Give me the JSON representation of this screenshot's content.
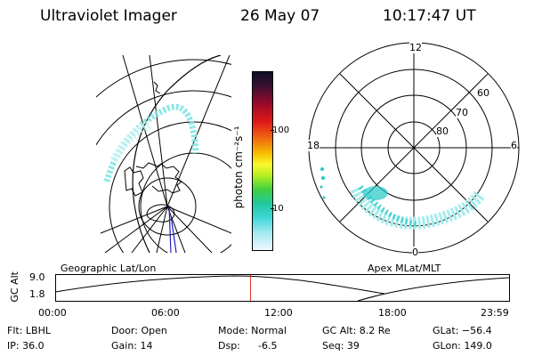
{
  "header": {
    "instrument": "Ultraviolet Imager",
    "date": "26 May 07",
    "time": "10:17:47 UT"
  },
  "colorbar": {
    "label": "photon cm⁻²s⁻¹",
    "ticks": [
      "100",
      "10"
    ]
  },
  "panels": {
    "left_label": "Geographic Lat/Lon",
    "right_label": "Apex MLat/MLT"
  },
  "polar_plot": {
    "mlt_labels": {
      "top": "12",
      "bottom": "0",
      "left": "18",
      "right": "6"
    },
    "lat_labels": [
      "60",
      "70",
      "80"
    ]
  },
  "altitude_plot": {
    "ylabel": "GC Alt",
    "y_ticks": [
      "9.0",
      "1.8"
    ],
    "x_ticks": [
      "00:00",
      "06:00",
      "12:00",
      "18:00",
      "23:59"
    ],
    "current_time_fraction": 0.4292
  },
  "meta": {
    "flt": "Flt: LBHL",
    "ip": "IP: 36.0",
    "door": "Door: Open",
    "gain": "Gain: 14",
    "mode": "Mode: Normal",
    "dsp_label": "Dsp:",
    "dsp_value": "-6.5",
    "gcalt": "GC Alt: 8.2 Re",
    "seq": "Seq: 39",
    "glat": "GLat: −56.4",
    "glon": "GLon: 149.0"
  },
  "colors": {
    "aurora": "#7fe3e3",
    "aurora_bright": "#27c7c7",
    "time_marker": "#e03020",
    "nadir_line": "#2020c0"
  }
}
